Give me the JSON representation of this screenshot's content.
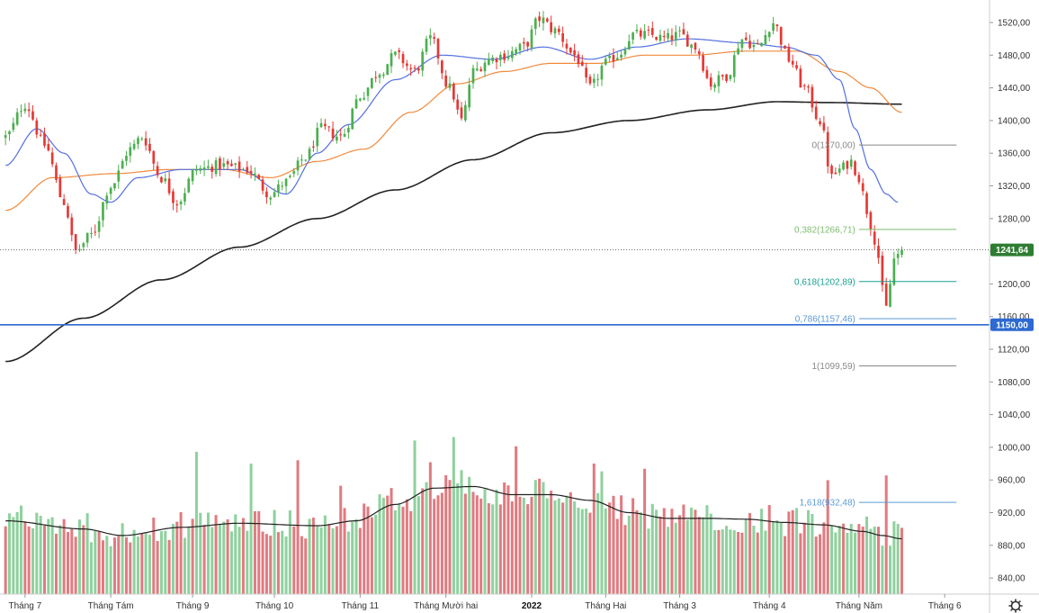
{
  "chart_data": {
    "type": "candlestick",
    "title": "",
    "y_axis": {
      "min": 820,
      "max": 1540,
      "ticks": [
        "1520,00",
        "1480,00",
        "1440,00",
        "1400,00",
        "1360,00",
        "1320,00",
        "1280,00",
        "1240,00",
        "1200,00",
        "1160,00",
        "1120,00",
        "1080,00",
        "1040,00",
        "1000,00",
        "960,00",
        "920,00",
        "880,00",
        "840,00"
      ],
      "tick_values": [
        1520,
        1480,
        1440,
        1400,
        1360,
        1320,
        1280,
        1240,
        1200,
        1160,
        1120,
        1080,
        1040,
        1000,
        960,
        920,
        880,
        840
      ]
    },
    "x_axis": {
      "labels": [
        {
          "text": "Tháng 7",
          "bar": 5
        },
        {
          "text": "Tháng Tám",
          "bar": 27
        },
        {
          "text": "Tháng 9",
          "bar": 48
        },
        {
          "text": "Tháng 10",
          "bar": 69
        },
        {
          "text": "Tháng 11",
          "bar": 91
        },
        {
          "text": "Tháng Mười hai",
          "bar": 113
        },
        {
          "text": "2022",
          "bar": 135,
          "bold": true
        },
        {
          "text": "Tháng Hai",
          "bar": 154
        },
        {
          "text": "Tháng 3",
          "bar": 173
        },
        {
          "text": "Tháng 4",
          "bar": 196
        },
        {
          "text": "Tháng Năm",
          "bar": 219
        },
        {
          "text": "Tháng 6",
          "bar": 241
        }
      ]
    },
    "price_series_anchors": [
      [
        0,
        1380
      ],
      [
        5,
        1420
      ],
      [
        10,
        1370
      ],
      [
        15,
        1300
      ],
      [
        18,
        1240
      ],
      [
        22,
        1260
      ],
      [
        27,
        1320
      ],
      [
        32,
        1365
      ],
      [
        35,
        1380
      ],
      [
        40,
        1330
      ],
      [
        44,
        1300
      ],
      [
        49,
        1340
      ],
      [
        55,
        1345
      ],
      [
        62,
        1340
      ],
      [
        68,
        1310
      ],
      [
        72,
        1325
      ],
      [
        77,
        1355
      ],
      [
        81,
        1390
      ],
      [
        86,
        1380
      ],
      [
        91,
        1430
      ],
      [
        96,
        1460
      ],
      [
        100,
        1480
      ],
      [
        105,
        1460
      ],
      [
        109,
        1500
      ],
      [
        114,
        1440
      ],
      [
        117,
        1400
      ],
      [
        120,
        1460
      ],
      [
        124,
        1475
      ],
      [
        128,
        1480
      ],
      [
        133,
        1490
      ],
      [
        137,
        1525
      ],
      [
        141,
        1510
      ],
      [
        146,
        1480
      ],
      [
        150,
        1440
      ],
      [
        154,
        1470
      ],
      [
        157,
        1480
      ],
      [
        161,
        1505
      ],
      [
        165,
        1505
      ],
      [
        169,
        1500
      ],
      [
        173,
        1505
      ],
      [
        177,
        1490
      ],
      [
        181,
        1445
      ],
      [
        185,
        1455
      ],
      [
        189,
        1500
      ],
      [
        193,
        1490
      ],
      [
        197,
        1520
      ],
      [
        201,
        1475
      ],
      [
        205,
        1440
      ],
      [
        209,
        1400
      ],
      [
        212,
        1330
      ],
      [
        214,
        1340
      ],
      [
        217,
        1350
      ],
      [
        219,
        1330
      ],
      [
        221,
        1290
      ],
      [
        223,
        1255
      ],
      [
        226,
        1170
      ],
      [
        228,
        1230
      ],
      [
        230,
        1241.64
      ]
    ],
    "ma_short_anchors": [
      [
        0,
        1345
      ],
      [
        8,
        1390
      ],
      [
        15,
        1360
      ],
      [
        22,
        1310
      ],
      [
        27,
        1300
      ],
      [
        34,
        1330
      ],
      [
        45,
        1340
      ],
      [
        60,
        1340
      ],
      [
        72,
        1310
      ],
      [
        80,
        1360
      ],
      [
        88,
        1395
      ],
      [
        100,
        1450
      ],
      [
        112,
        1480
      ],
      [
        125,
        1475
      ],
      [
        138,
        1490
      ],
      [
        150,
        1475
      ],
      [
        162,
        1490
      ],
      [
        175,
        1500
      ],
      [
        190,
        1495
      ],
      [
        200,
        1490
      ],
      [
        208,
        1480
      ],
      [
        214,
        1450
      ],
      [
        218,
        1390
      ],
      [
        222,
        1340
      ],
      [
        226,
        1310
      ],
      [
        229,
        1300
      ]
    ],
    "ma_medium_anchors": [
      [
        0,
        1290
      ],
      [
        12,
        1330
      ],
      [
        28,
        1335
      ],
      [
        42,
        1340
      ],
      [
        56,
        1340
      ],
      [
        68,
        1330
      ],
      [
        80,
        1350
      ],
      [
        92,
        1365
      ],
      [
        104,
        1410
      ],
      [
        116,
        1445
      ],
      [
        128,
        1460
      ],
      [
        140,
        1470
      ],
      [
        152,
        1470
      ],
      [
        164,
        1480
      ],
      [
        176,
        1480
      ],
      [
        190,
        1485
      ],
      [
        203,
        1485
      ],
      [
        214,
        1460
      ],
      [
        222,
        1440
      ],
      [
        230,
        1410
      ]
    ],
    "ma_long_anchors": [
      [
        0,
        1105
      ],
      [
        20,
        1158
      ],
      [
        40,
        1205
      ],
      [
        60,
        1245
      ],
      [
        80,
        1280
      ],
      [
        100,
        1315
      ],
      [
        120,
        1352
      ],
      [
        140,
        1385
      ],
      [
        160,
        1400
      ],
      [
        180,
        1413
      ],
      [
        198,
        1423
      ],
      [
        212,
        1422
      ],
      [
        230,
        1420
      ]
    ],
    "volume_ma_anchors": [
      [
        0,
        910
      ],
      [
        20,
        900
      ],
      [
        30,
        892
      ],
      [
        45,
        902
      ],
      [
        60,
        907
      ],
      [
        80,
        904
      ],
      [
        90,
        910
      ],
      [
        100,
        930
      ],
      [
        110,
        950
      ],
      [
        120,
        952
      ],
      [
        130,
        942
      ],
      [
        140,
        942
      ],
      [
        150,
        935
      ],
      [
        160,
        920
      ],
      [
        170,
        913
      ],
      [
        180,
        913
      ],
      [
        190,
        912
      ],
      [
        200,
        908
      ],
      [
        210,
        905
      ],
      [
        220,
        897
      ],
      [
        225,
        892
      ],
      [
        230,
        888
      ]
    ],
    "fibonacci": [
      {
        "label": "0(1370,00)",
        "value": 1370.0,
        "color": "#888888",
        "start_bar": 219,
        "end_bar": 244
      },
      {
        "label": "0,382(1266,71)",
        "value": 1266.71,
        "color": "#7cbd6f",
        "start_bar": 219,
        "end_bar": 244
      },
      {
        "label": "0,618(1202,89)",
        "value": 1202.89,
        "color": "#1a9e8f",
        "start_bar": 219,
        "end_bar": 244
      },
      {
        "label": "0,786(1157,46)",
        "value": 1157.46,
        "color": "#5b9bd5",
        "start_bar": 219,
        "end_bar": 244
      },
      {
        "label": "1(1099,59)",
        "value": 1099.59,
        "color": "#888888",
        "start_bar": 219,
        "end_bar": 244
      },
      {
        "label": "1,618(932,48)",
        "value": 932.48,
        "color": "#5b9bd5",
        "start_bar": 219,
        "end_bar": 244
      }
    ],
    "horizontal_line": {
      "value": 1150.0,
      "label": "1150,00",
      "color": "#2d6ad1"
    },
    "last_price": {
      "value": 1241.64,
      "label": "1241,64",
      "color": "#2e7d32"
    },
    "colors": {
      "up": "#4caf50",
      "down": "#e53935",
      "vol_up": "#8fd19e",
      "vol_down": "#e07b80",
      "ma_short": "#5470e0",
      "ma_medium": "#f08a3c",
      "ma_long": "#222222",
      "vol_ma": "#222222"
    },
    "volume_base": 820,
    "total_bars": 231,
    "visible_bars": 253
  },
  "toolbar": {
    "settings_icon": "gear-icon"
  }
}
